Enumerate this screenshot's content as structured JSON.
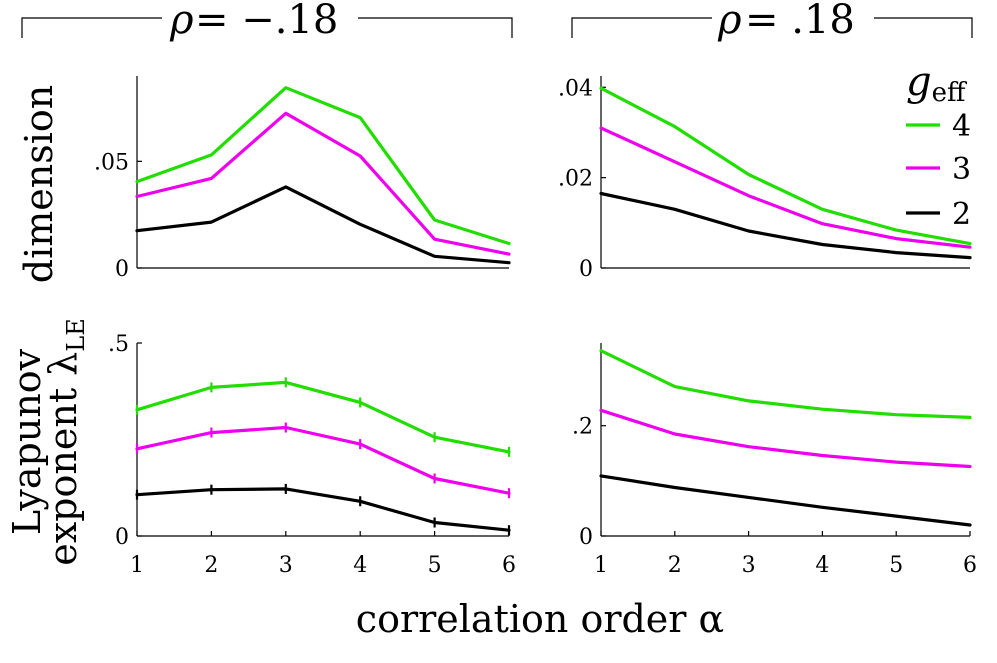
{
  "header": {
    "left_rho": "ρ",
    "left_value": "= −.18",
    "right_rho": "ρ",
    "right_value": "= .18"
  },
  "labels": {
    "ylabel_dimension": "dimension",
    "ylabel_lyap_line1": "Lyapunov",
    "ylabel_lyap_line2": "exponent λ",
    "ylabel_lyap_sub": "LE",
    "xlabel": "correlation order α"
  },
  "legend": {
    "title_main": "g",
    "title_sub": "eff",
    "entries": [
      {
        "label": "4",
        "color": "#22dd00"
      },
      {
        "label": "3",
        "color": "#ee00ee"
      },
      {
        "label": "2",
        "color": "#000000"
      }
    ]
  },
  "colors": {
    "g4": "#22dd00",
    "g3": "#ee00ee",
    "g2": "#000000"
  },
  "chart_data": [
    {
      "id": "dim_neg",
      "type": "line",
      "title": "ρ = −.18",
      "ylabel": "dimension",
      "x": [
        1,
        2,
        3,
        4,
        5,
        6
      ],
      "xlim": [
        1,
        6
      ],
      "ylim": [
        0,
        0.09
      ],
      "yticks": [
        0,
        0.05
      ],
      "ytick_labels": [
        "0",
        ".05"
      ],
      "xticks": [],
      "series": [
        {
          "name": "4",
          "color": "#22dd00",
          "values": [
            0.0405,
            0.053,
            0.0845,
            0.0705,
            0.0225,
            0.0115
          ]
        },
        {
          "name": "3",
          "color": "#ee00ee",
          "values": [
            0.0335,
            0.042,
            0.0725,
            0.0525,
            0.0135,
            0.0065
          ]
        },
        {
          "name": "2",
          "color": "#000000",
          "values": [
            0.0175,
            0.0215,
            0.038,
            0.0205,
            0.0055,
            0.0025
          ]
        }
      ]
    },
    {
      "id": "dim_pos",
      "type": "line",
      "title": "ρ = .18",
      "ylabel": "",
      "x": [
        1,
        2,
        3,
        4,
        5,
        6
      ],
      "xlim": [
        1,
        6
      ],
      "ylim": [
        0,
        0.0425
      ],
      "yticks": [
        0,
        0.02,
        0.04
      ],
      "ytick_labels": [
        "0",
        ".02",
        ".04"
      ],
      "xticks": [],
      "series": [
        {
          "name": "4",
          "color": "#22dd00",
          "values": [
            0.0398,
            0.0313,
            0.0207,
            0.013,
            0.0084,
            0.0054
          ]
        },
        {
          "name": "3",
          "color": "#ee00ee",
          "values": [
            0.031,
            0.0235,
            0.016,
            0.0098,
            0.0065,
            0.0046
          ]
        },
        {
          "name": "2",
          "color": "#000000",
          "values": [
            0.0165,
            0.013,
            0.0082,
            0.0052,
            0.0034,
            0.0023
          ]
        }
      ]
    },
    {
      "id": "lyap_neg",
      "type": "line",
      "title": "",
      "ylabel": "Lyapunov exponent λLE",
      "x": [
        1,
        2,
        3,
        4,
        5,
        6
      ],
      "xlim": [
        1,
        6
      ],
      "ylim": [
        0,
        0.5
      ],
      "yticks": [
        0,
        0.5
      ],
      "ytick_labels": [
        "0",
        ".5"
      ],
      "xticks": [
        1,
        2,
        3,
        4,
        5,
        6
      ],
      "xtick_labels": [
        "1",
        "2",
        "3",
        "4",
        "5",
        "6"
      ],
      "error_bars": true,
      "series": [
        {
          "name": "4",
          "color": "#22dd00",
          "values": [
            0.327,
            0.385,
            0.398,
            0.346,
            0.256,
            0.218
          ]
        },
        {
          "name": "3",
          "color": "#ee00ee",
          "values": [
            0.226,
            0.268,
            0.281,
            0.238,
            0.149,
            0.111
          ]
        },
        {
          "name": "2",
          "color": "#000000",
          "values": [
            0.107,
            0.12,
            0.122,
            0.09,
            0.035,
            0.015
          ]
        }
      ]
    },
    {
      "id": "lyap_pos",
      "type": "line",
      "title": "",
      "ylabel": "",
      "x": [
        1,
        2,
        3,
        4,
        5,
        6
      ],
      "xlim": [
        1,
        6
      ],
      "ylim": [
        0,
        0.35
      ],
      "yticks": [
        0,
        0.2
      ],
      "ytick_labels": [
        "0",
        ".2"
      ],
      "xticks": [
        1,
        2,
        3,
        4,
        5,
        6
      ],
      "xtick_labels": [
        "1",
        "2",
        "3",
        "4",
        "5",
        "6"
      ],
      "series": [
        {
          "name": "4",
          "color": "#22dd00",
          "values": [
            0.336,
            0.271,
            0.245,
            0.23,
            0.22,
            0.215
          ]
        },
        {
          "name": "3",
          "color": "#ee00ee",
          "values": [
            0.228,
            0.185,
            0.162,
            0.146,
            0.134,
            0.126
          ]
        },
        {
          "name": "2",
          "color": "#000000",
          "values": [
            0.109,
            0.088,
            0.07,
            0.052,
            0.036,
            0.02
          ]
        }
      ]
    }
  ]
}
